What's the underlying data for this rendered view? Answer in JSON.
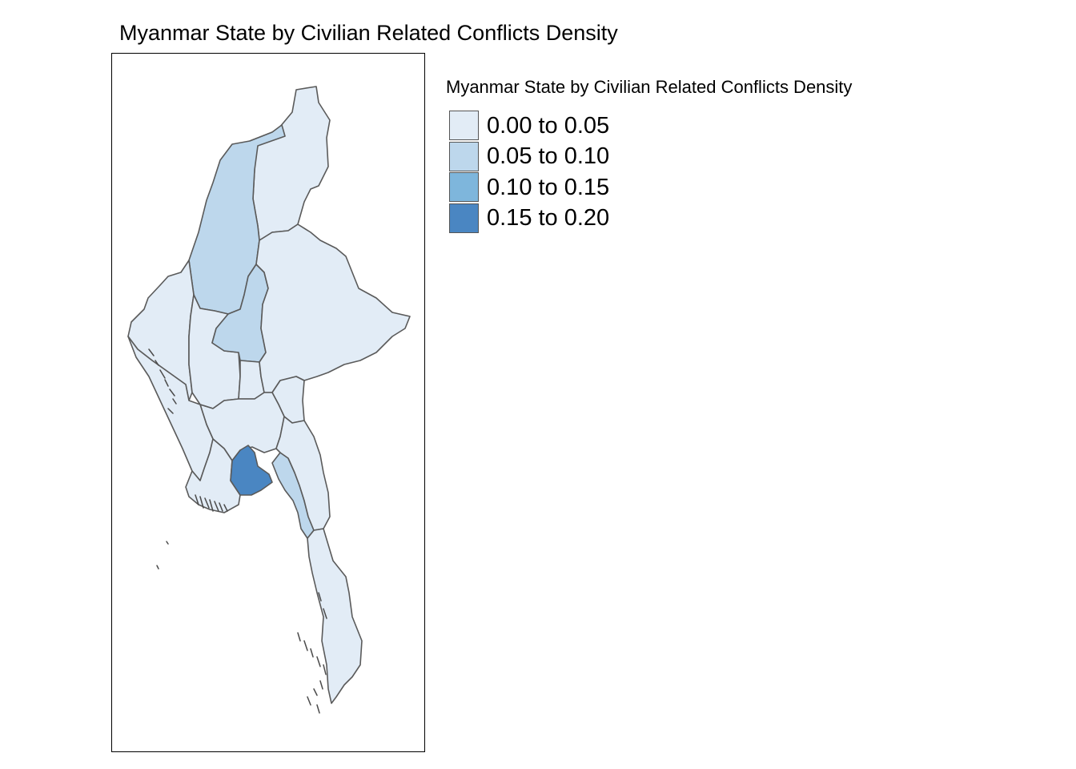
{
  "title": "Myanmar State by Civilian Related Conflicts Density",
  "legend": {
    "title": "Myanmar State by Civilian Related Conflicts Density",
    "items": [
      {
        "label": "0.00 to 0.05",
        "color": "#e2ecf6"
      },
      {
        "label": "0.05 to 0.10",
        "color": "#bdd7ec"
      },
      {
        "label": "0.10 to 0.15",
        "color": "#7eb6dc"
      },
      {
        "label": "0.15 to 0.20",
        "color": "#4a86c2"
      }
    ]
  },
  "palette": {
    "background": "#ffffff",
    "border": "#5a5a5a"
  }
}
